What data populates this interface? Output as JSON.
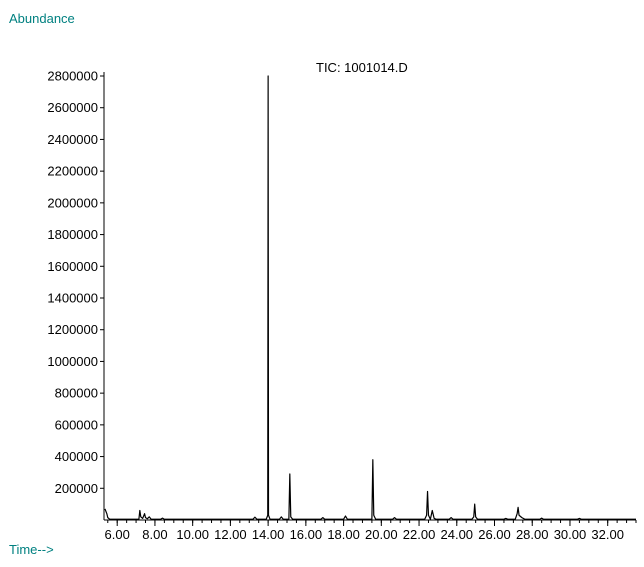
{
  "chart_data": {
    "type": "line",
    "title": "TIC: 1001014.D",
    "ylabel": "Abundance",
    "xlabel": "Time-->",
    "xlim": [
      5.3,
      33.5
    ],
    "ylim": [
      0,
      2800000
    ],
    "y_ticks": [
      200000,
      400000,
      600000,
      800000,
      1000000,
      1200000,
      1400000,
      1600000,
      1800000,
      2000000,
      2200000,
      2400000,
      2600000,
      2800000
    ],
    "y_tick_labels": [
      "200000",
      "400000",
      "600000",
      "800000",
      "1000000",
      "1200000",
      "1400000",
      "1600000",
      "1800000",
      "2000000",
      "2200000",
      "2400000",
      "2600000",
      "2800000"
    ],
    "x_ticks": [
      6,
      8,
      10,
      12,
      14,
      16,
      18,
      20,
      22,
      24,
      26,
      28,
      30,
      32
    ],
    "x_tick_labels": [
      "6.00",
      "8.00",
      "10.00",
      "12.00",
      "14.00",
      "16.00",
      "18.00",
      "20.00",
      "22.00",
      "24.00",
      "26.00",
      "28.00",
      "30.00",
      "32.00"
    ],
    "series": [
      {
        "color": "#000000",
        "x": [
          5.35,
          5.45,
          5.5,
          5.6,
          6.5,
          7.15,
          7.2,
          7.25,
          7.35,
          7.45,
          7.5,
          7.6,
          7.7,
          7.8,
          8.3,
          8.4,
          8.5,
          9.5,
          12.5,
          13.2,
          13.3,
          13.4,
          13.9,
          13.98,
          14.0,
          14.02,
          14.1,
          14.6,
          14.7,
          14.8,
          15.1,
          15.15,
          15.2,
          15.3,
          16.8,
          16.9,
          17.0,
          18.0,
          18.1,
          18.2,
          19.5,
          19.55,
          19.6,
          19.7,
          20.6,
          20.7,
          20.8,
          22.3,
          22.4,
          22.45,
          22.5,
          22.6,
          22.7,
          22.8,
          22.9,
          23.6,
          23.7,
          23.8,
          24.8,
          24.9,
          24.95,
          25.0,
          25.1,
          26.5,
          26.6,
          26.7,
          27.1,
          27.2,
          27.25,
          27.3,
          27.45,
          27.6,
          28.4,
          28.5,
          28.6,
          30.4,
          30.5,
          30.6,
          33.5
        ],
        "y": [
          70000,
          40000,
          15000,
          5000,
          5000,
          5000,
          60000,
          20000,
          10000,
          40000,
          15000,
          8000,
          20000,
          5000,
          5000,
          12000,
          5000,
          5000,
          5000,
          5000,
          18000,
          5000,
          5000,
          30000,
          2800000,
          30000,
          5000,
          5000,
          20000,
          5000,
          5000,
          290000,
          20000,
          5000,
          5000,
          15000,
          5000,
          5000,
          25000,
          5000,
          5000,
          380000,
          30000,
          5000,
          5000,
          15000,
          5000,
          5000,
          30000,
          180000,
          30000,
          5000,
          60000,
          10000,
          5000,
          5000,
          15000,
          5000,
          5000,
          20000,
          100000,
          20000,
          5000,
          5000,
          10000,
          5000,
          5000,
          40000,
          80000,
          30000,
          15000,
          5000,
          5000,
          12000,
          5000,
          5000,
          10000,
          5000,
          5000
        ]
      }
    ]
  }
}
